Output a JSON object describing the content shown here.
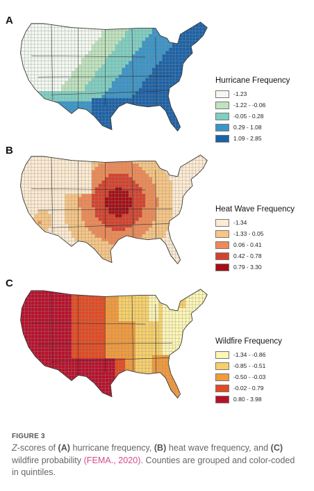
{
  "panels": [
    {
      "letter": "A",
      "legend": {
        "title": "Hurricane Frequency",
        "items": [
          {
            "label": "-1.23",
            "color": "#f3f9f1"
          },
          {
            "label": "-1.22 - -0.06",
            "color": "#bfe3be"
          },
          {
            "label": "-0.05 - 0.28",
            "color": "#7fcfc2"
          },
          {
            "label": "0.29 - 1.08",
            "color": "#3a95c8"
          },
          {
            "label": "1.09 - 2.85",
            "color": "#1b62a8"
          }
        ]
      }
    },
    {
      "letter": "B",
      "legend": {
        "title": "Heat Wave Frequency",
        "items": [
          {
            "label": "-1.34",
            "color": "#fdebd2"
          },
          {
            "label": "-1.33 - 0.05",
            "color": "#f7c684"
          },
          {
            "label": "0.06 - 0.41",
            "color": "#ee8a56"
          },
          {
            "label": "0.42 - 0.78",
            "color": "#d5422c"
          },
          {
            "label": "0.79 - 3.30",
            "color": "#a50f15"
          }
        ]
      }
    },
    {
      "letter": "C",
      "legend": {
        "title": "Wildfire Frequency",
        "items": [
          {
            "label": "-1.34 - -0.86",
            "color": "#fdf6b5"
          },
          {
            "label": "-0.85 - -0.51",
            "color": "#f8d069"
          },
          {
            "label": "-0.50 - -0.03",
            "color": "#f29a3b"
          },
          {
            "label": "-0.02 - 0.79",
            "color": "#e34a22"
          },
          {
            "label": "0.80 - 3.98",
            "color": "#b8102b"
          }
        ]
      }
    }
  ],
  "caption": {
    "figure_label": "FIGURE 3",
    "z": "Z",
    "t1": "-scores of ",
    "a": "(A)",
    "t2": " hurricane frequency, ",
    "b": "(B)",
    "t3": " heat wave frequency, and ",
    "c": "(C)",
    "t4": " wildfire probability ",
    "cite": "(FEMA., 2020)",
    "t5": ". Counties are grouped and color-coded in quintiles."
  }
}
